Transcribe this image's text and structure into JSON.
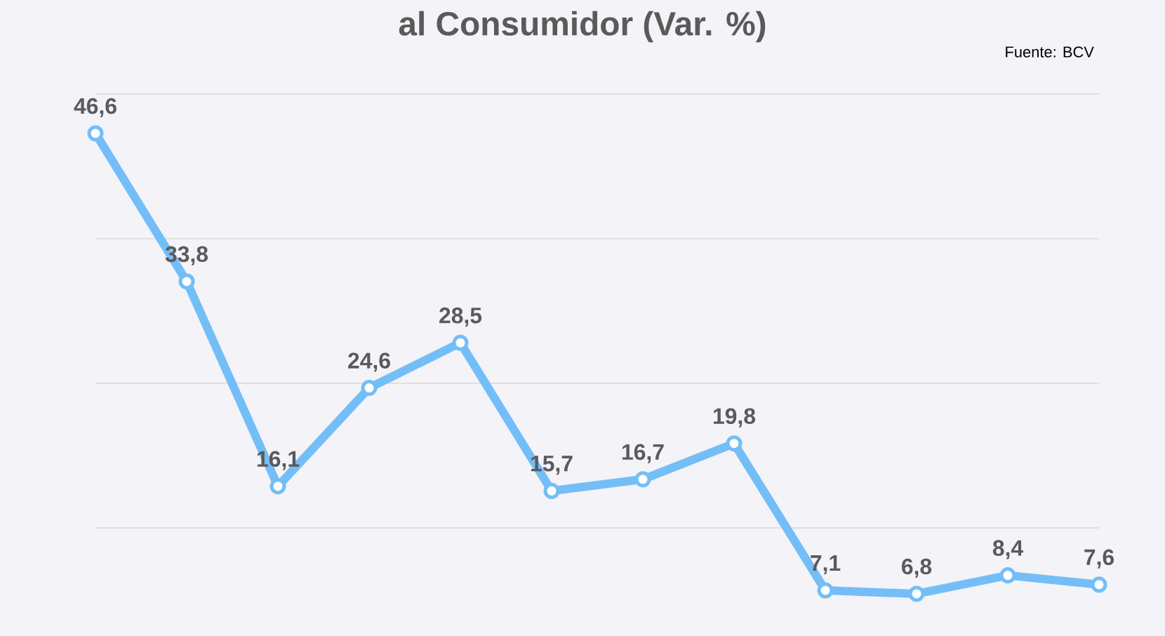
{
  "chart_data": {
    "type": "line",
    "title": "al Consumidor (Var. %)",
    "annotations": [
      "Fuente: BCV"
    ],
    "categories": [
      null,
      null,
      null,
      null,
      null,
      null,
      null,
      null,
      null,
      null,
      null,
      null
    ],
    "series": [
      {
        "color": "#74bef8",
        "values": [
          46.6,
          33.8,
          16.1,
          24.6,
          28.5,
          15.7,
          16.7,
          19.8,
          7.1,
          6.8,
          8.4,
          7.6
        ],
        "value_labels": [
          "46,6",
          "33,8",
          "16,1",
          "24,6",
          "28,5",
          "15,7",
          "16,7",
          "19,8",
          "7,1",
          "6,8",
          "8,4",
          "7,6"
        ]
      }
    ],
    "yticks": [
      {
        "value": 12.5,
        "label": null
      },
      {
        "value": 25,
        "label": null
      },
      {
        "value": 37.5,
        "label": null
      },
      {
        "value": 50,
        "label": null
      }
    ],
    "grid": "y",
    "marker": "circle",
    "line_style": "solid"
  }
}
